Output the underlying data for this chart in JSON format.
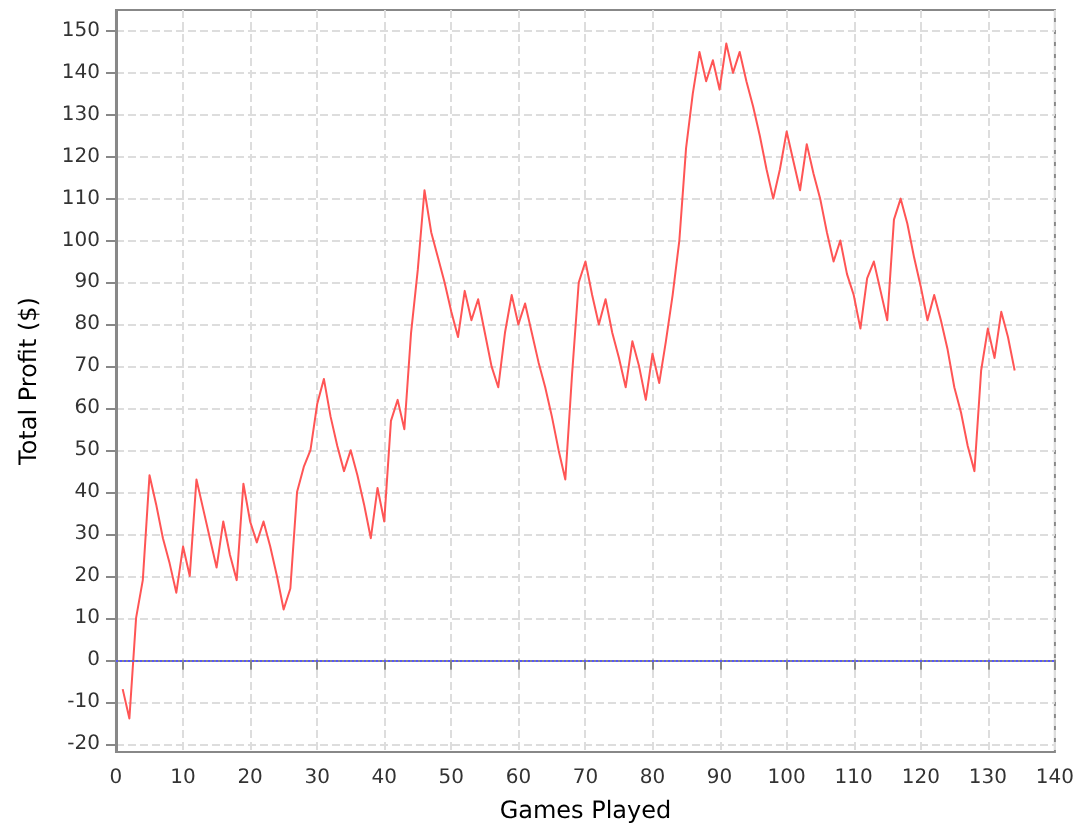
{
  "chart_data": {
    "type": "line",
    "xlabel": "Games Played",
    "ylabel": "Total Profit ($)",
    "x": [
      1,
      2,
      3,
      4,
      5,
      6,
      7,
      8,
      9,
      10,
      11,
      12,
      13,
      14,
      15,
      16,
      17,
      18,
      19,
      20,
      21,
      22,
      23,
      24,
      25,
      26,
      27,
      28,
      29,
      30,
      31,
      32,
      33,
      34,
      35,
      36,
      37,
      38,
      39,
      40,
      41,
      42,
      43,
      44,
      45,
      46,
      47,
      48,
      49,
      50,
      51,
      52,
      53,
      54,
      55,
      56,
      57,
      58,
      59,
      60,
      61,
      62,
      63,
      64,
      65,
      66,
      67,
      68,
      69,
      70,
      71,
      72,
      73,
      74,
      75,
      76,
      77,
      78,
      79,
      80,
      81,
      82,
      83,
      84,
      85,
      86,
      87,
      88,
      89,
      90,
      91,
      92,
      93,
      94,
      95,
      96,
      97,
      98,
      99,
      100,
      101,
      102,
      103,
      104,
      105,
      106,
      107,
      108,
      109,
      110,
      111,
      112,
      113,
      114,
      115,
      116,
      117,
      118,
      119,
      120,
      121,
      122,
      123,
      124,
      125,
      126,
      127,
      128,
      129,
      130,
      131,
      132,
      133,
      134
    ],
    "series": [
      {
        "color": "#ff5555",
        "values": [
          -7,
          -14,
          10,
          19,
          44,
          37,
          29,
          23,
          16,
          27,
          20,
          43,
          36,
          29,
          22,
          33,
          25,
          19,
          42,
          33,
          28,
          33,
          27,
          20,
          12,
          17,
          40,
          46,
          50,
          61,
          67,
          58,
          51,
          45,
          50,
          44,
          37,
          29,
          41,
          33,
          57,
          62,
          55,
          78,
          93,
          112,
          102,
          96,
          90,
          83,
          77,
          88,
          81,
          86,
          78,
          70,
          65,
          78,
          87,
          80,
          85,
          78,
          71,
          65,
          58,
          50,
          43,
          68,
          90,
          95,
          87,
          80,
          86,
          78,
          72,
          65,
          76,
          70,
          62,
          73,
          66,
          76,
          87,
          100,
          122,
          135,
          145,
          138,
          143,
          136,
          147,
          140,
          145,
          138,
          132,
          125,
          117,
          110,
          117,
          126,
          119,
          112,
          123,
          116,
          110,
          102,
          95,
          100,
          92,
          87,
          79,
          91,
          95,
          88,
          81,
          105,
          110,
          104,
          96,
          89,
          81,
          87,
          81,
          74,
          65,
          59,
          51,
          45,
          69,
          79,
          72,
          83,
          77,
          69
        ]
      }
    ],
    "xlim": [
      0,
      140
    ],
    "xticks": [
      0,
      10,
      20,
      30,
      40,
      50,
      60,
      70,
      80,
      90,
      100,
      110,
      120,
      130,
      140
    ],
    "ylim": [
      -22,
      155
    ],
    "yticks": [
      -20,
      -10,
      0,
      10,
      20,
      30,
      40,
      50,
      60,
      70,
      80,
      90,
      100,
      110,
      120,
      130,
      140,
      150
    ],
    "grid": true,
    "marker": "none",
    "line_style": "solid",
    "ref_lines": [
      {
        "axis": "y",
        "value": 0,
        "color": "#5555ff",
        "line_style": "dotted"
      }
    ]
  }
}
